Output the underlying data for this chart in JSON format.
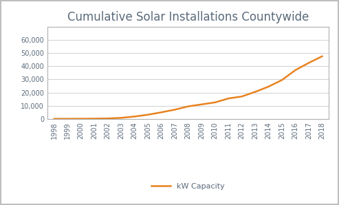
{
  "title": "Cumulative Solar Installations Countywide",
  "title_color": "#5a6a7a",
  "line_color": "#E8821E",
  "legend_label": "kW Capacity",
  "background_color": "#ffffff",
  "plot_bg_color": "#ffffff",
  "grid_color": "#d0d0d0",
  "years": [
    1998,
    1999,
    2000,
    2001,
    2002,
    2003,
    2004,
    2005,
    2006,
    2007,
    2008,
    2009,
    2010,
    2011,
    2012,
    2013,
    2014,
    2015,
    2016,
    2017,
    2018
  ],
  "values": [
    50,
    80,
    120,
    200,
    350,
    800,
    1800,
    3200,
    5000,
    7000,
    9500,
    11000,
    12500,
    15500,
    17000,
    20500,
    24500,
    29500,
    37000,
    42500,
    47500
  ],
  "ylim": [
    0,
    70000
  ],
  "yticks": [
    0,
    10000,
    20000,
    30000,
    40000,
    50000,
    60000
  ],
  "title_fontsize": 12,
  "tick_fontsize": 7,
  "legend_fontsize": 8,
  "line_width": 1.8,
  "border_color": "#b0b0b0",
  "outer_border_color": "#b0b0b0"
}
